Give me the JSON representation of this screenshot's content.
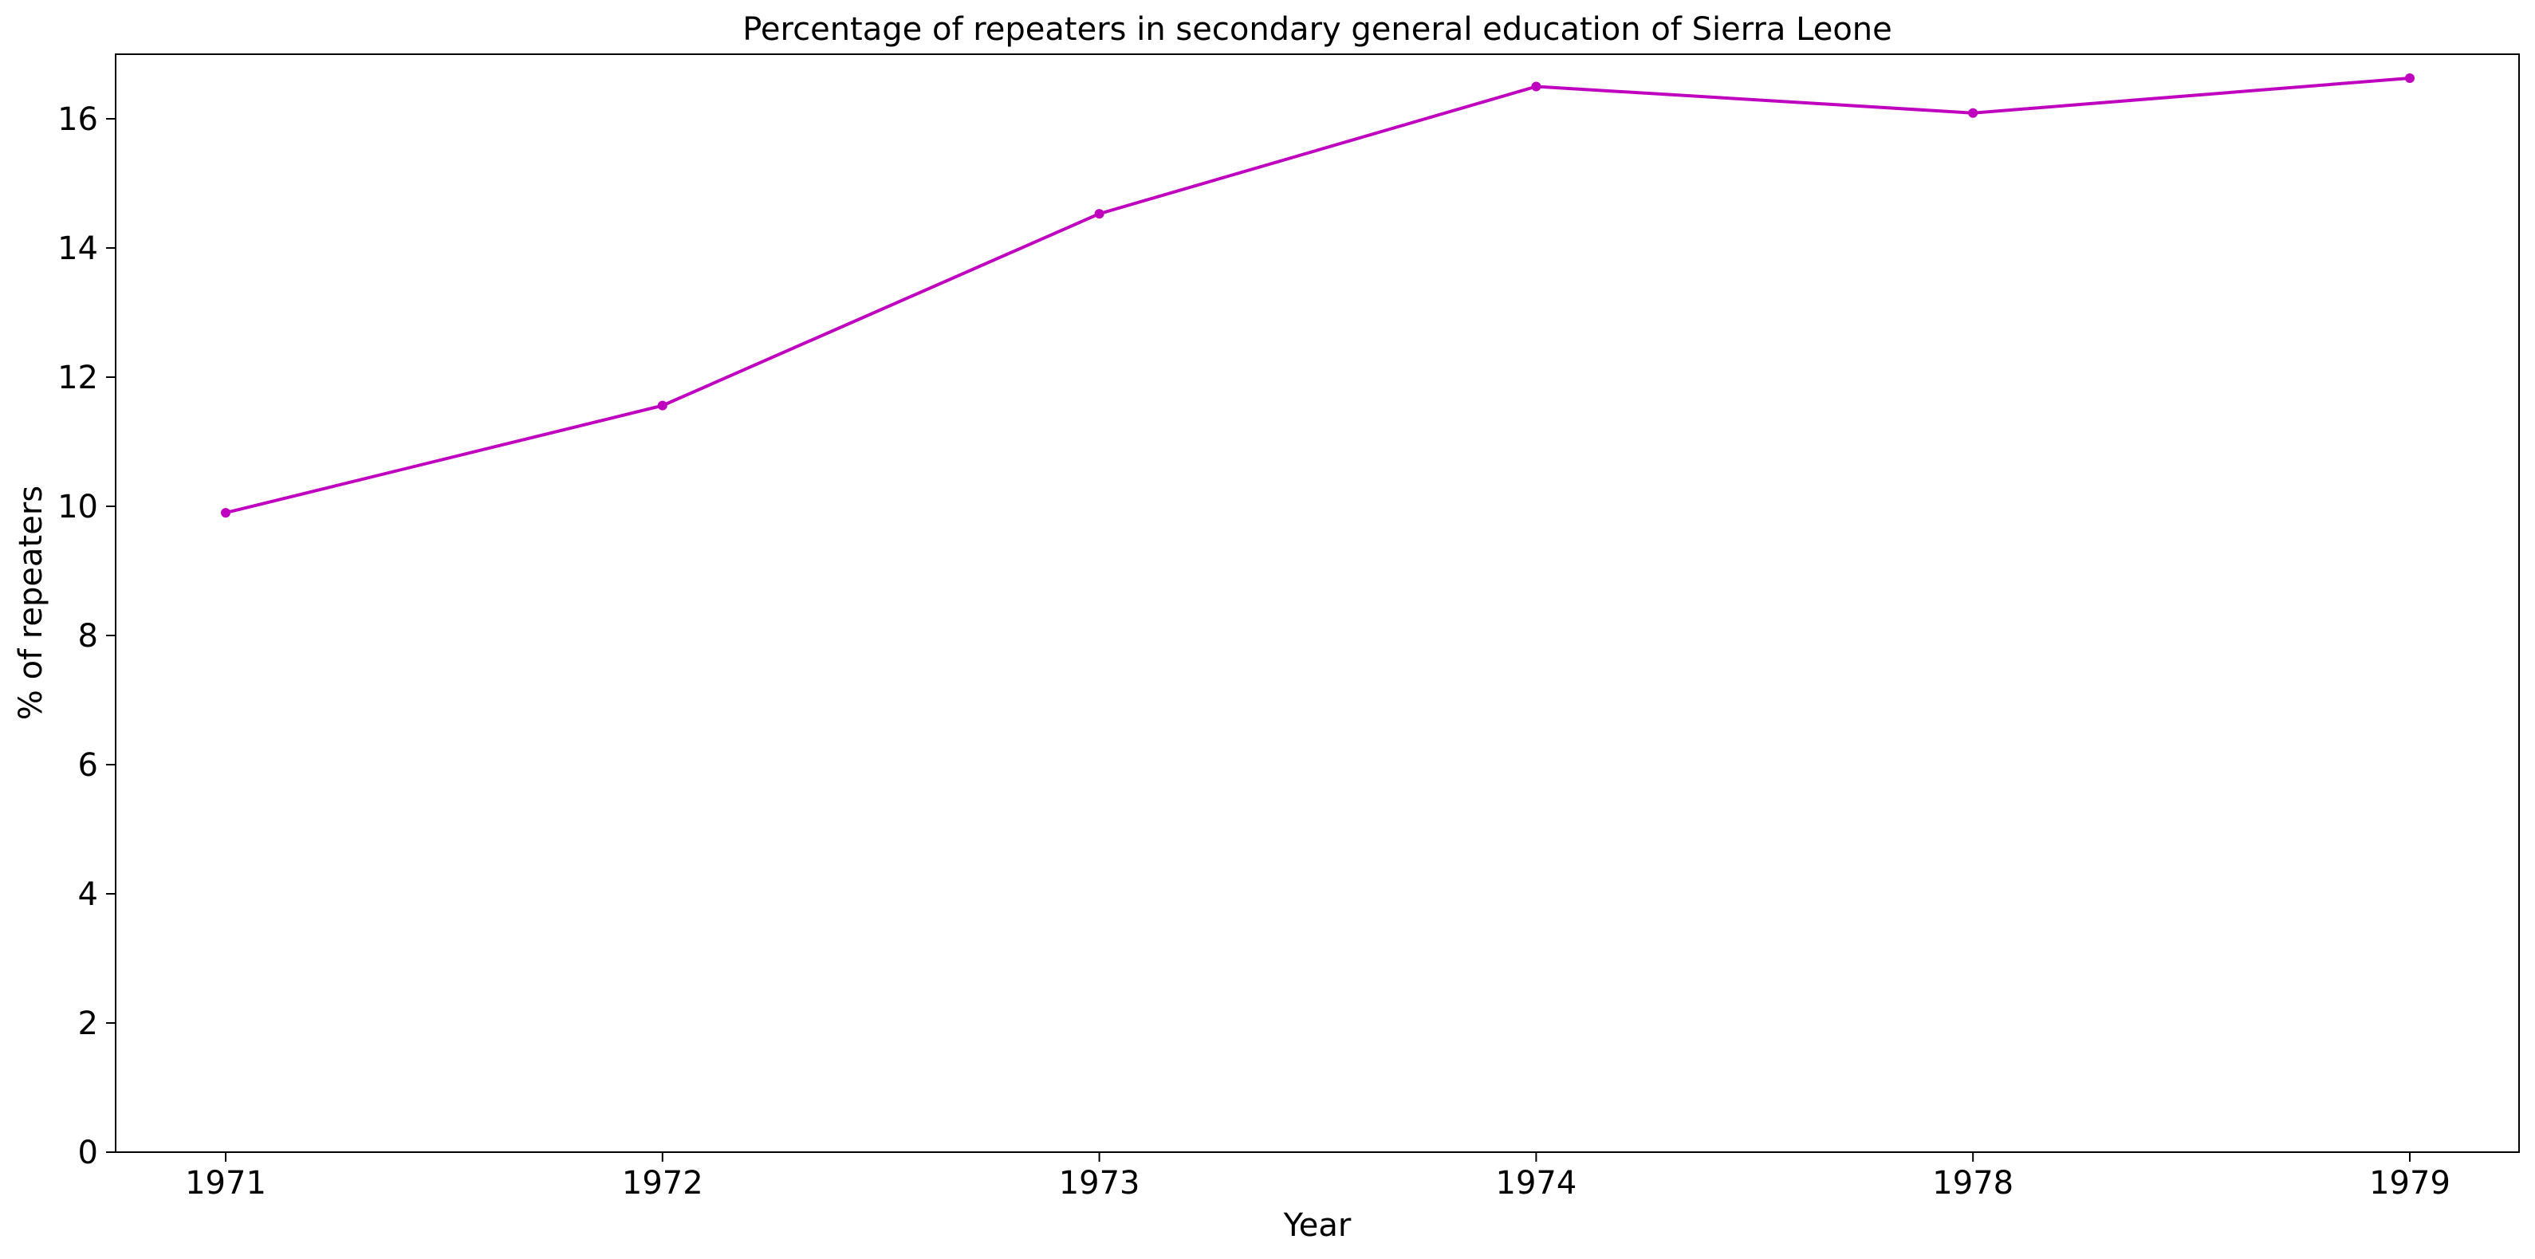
{
  "chart_data": {
    "type": "line",
    "title": "Percentage of repeaters in secondary general education of Sierra Leone",
    "xlabel": "Year",
    "ylabel": "% of repeaters",
    "categories": [
      "1971",
      "1972",
      "1973",
      "1974",
      "1978",
      "1979"
    ],
    "series": [
      {
        "values": [
          9.9,
          11.56,
          14.53,
          16.5,
          16.09,
          16.63
        ],
        "color": "#bf00bf"
      }
    ],
    "ylim": [
      0,
      17
    ],
    "yticks": [
      0,
      2,
      4,
      6,
      8,
      10,
      12,
      14,
      16
    ],
    "grid": false,
    "legend": "none"
  }
}
